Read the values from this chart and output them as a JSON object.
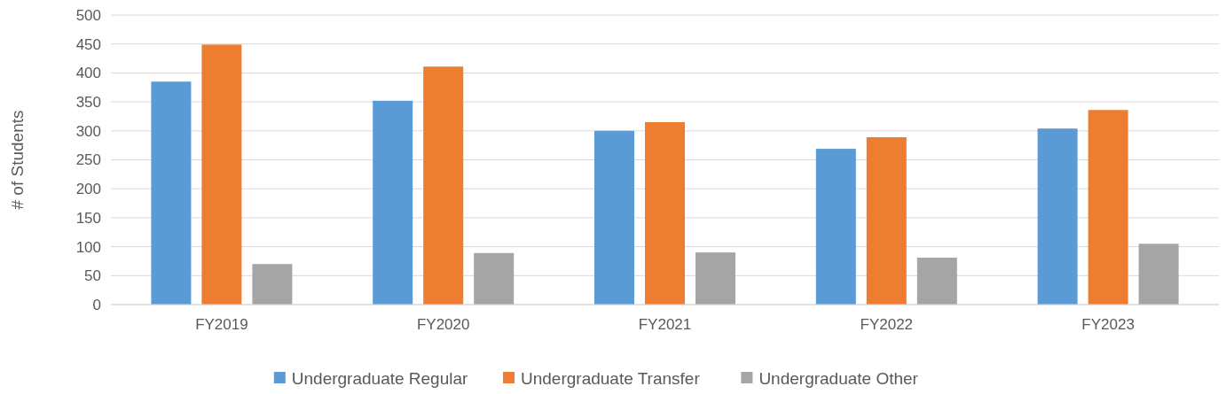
{
  "chart_data": {
    "type": "bar",
    "ylabel": "# of Students",
    "categories": [
      "FY2019",
      "FY2020",
      "FY2021",
      "FY2022",
      "FY2023"
    ],
    "series": [
      {
        "name": "Undergraduate Regular",
        "color": "#5b9bd5",
        "values": [
          385,
          352,
          300,
          269,
          304
        ]
      },
      {
        "name": "Undergraduate Transfer",
        "color": "#ed7d31",
        "values": [
          449,
          411,
          315,
          289,
          336
        ]
      },
      {
        "name": "Undergraduate Other",
        "color": "#a5a5a5",
        "values": [
          70,
          89,
          90,
          81,
          105
        ]
      }
    ],
    "ylim": [
      0,
      500
    ],
    "yticks": [
      0,
      50,
      100,
      150,
      200,
      250,
      300,
      350,
      400,
      450,
      500
    ],
    "grid": "y",
    "legend": "bottom"
  }
}
